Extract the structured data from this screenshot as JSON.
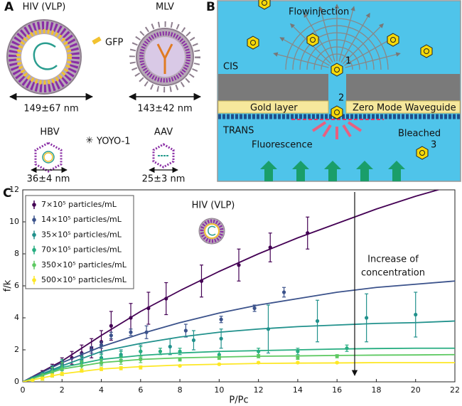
{
  "panels": {
    "A": {
      "label": "A",
      "hiv": "HIV (VLP)",
      "mlv": "MLV",
      "gfp": "GFP",
      "hiv_size": "149±67 nm",
      "mlv_size": "143±42 nm",
      "hbv": "HBV",
      "yoyo": "YOYO-1",
      "aav": "AAV",
      "hbv_size": "36±4 nm",
      "aav_size": "25±3 nm"
    },
    "B": {
      "label": "B",
      "flow": "Flowinjection",
      "cis": "CIS",
      "step1": "1",
      "step2": "2",
      "gold": "Gold layer",
      "zmw": "Zero Mode Waveguide",
      "trans": "TRANS",
      "fluorescence": "Fluorescence",
      "bleached": "Bleached",
      "step3": "3"
    },
    "C": {
      "label": "C"
    }
  },
  "chart_data": {
    "type": "scatter",
    "title": "HIV (VLP)",
    "x_label": "P/Pc",
    "y_label": "f/k",
    "annotation": [
      "Increase of",
      "concentration"
    ],
    "xlim": [
      0,
      22
    ],
    "ylim": [
      0,
      12
    ],
    "xticks": [
      0,
      2,
      4,
      6,
      8,
      10,
      12,
      14,
      16,
      18,
      20,
      22
    ],
    "yticks": [
      0,
      2,
      4,
      6,
      8,
      10,
      12
    ],
    "legend": "upper left",
    "series": [
      {
        "name": "7×10⁵ particles/mL",
        "color": "#440154",
        "x": [
          0.5,
          1,
          1.5,
          2,
          2.5,
          3,
          3.5,
          4,
          4.5,
          5.5,
          6.4,
          7.3,
          9.1,
          11,
          12.6,
          14.5
        ],
        "values": [
          0.2,
          0.5,
          0.8,
          1.2,
          1.5,
          1.8,
          2.1,
          2.5,
          3.5,
          4.0,
          4.6,
          5.2,
          6.3,
          7.3,
          8.4,
          9.3
        ],
        "errors": [
          0.1,
          0.2,
          0.3,
          0.3,
          0.4,
          0.5,
          0.6,
          0.7,
          0.9,
          0.9,
          1.0,
          1.0,
          1.0,
          1.0,
          0.9,
          1.0
        ],
        "fit": {
          "x": [
            0,
            2,
            4,
            6,
            8,
            10,
            12,
            14,
            16,
            18,
            20,
            22
          ],
          "values": [
            0,
            1.3,
            2.9,
            4.4,
            5.7,
            6.9,
            8.0,
            9.0,
            9.9,
            10.8,
            11.6,
            12.3
          ]
        }
      },
      {
        "name": "14×10⁵ particles/mL",
        "color": "#3b528b",
        "x": [
          0.5,
          1,
          1.5,
          2,
          3,
          3.5,
          4,
          4.5,
          5.5,
          6.3,
          8.3,
          10.1,
          11.8,
          13.3
        ],
        "values": [
          0.2,
          0.4,
          0.8,
          1.1,
          1.6,
          2.0,
          2.3,
          2.9,
          3.1,
          3.1,
          3.2,
          3.9,
          4.6,
          5.6
        ],
        "errors": [
          0.1,
          0.1,
          0.2,
          0.2,
          0.2,
          0.2,
          0.2,
          0.2,
          0.2,
          0.4,
          0.4,
          0.2,
          0.2,
          0.3
        ],
        "fit": {
          "x": [
            0,
            2,
            4,
            6,
            8,
            10,
            12,
            14,
            16,
            18,
            20,
            22
          ],
          "values": [
            0,
            1.2,
            2.2,
            3.0,
            3.7,
            4.3,
            4.8,
            5.2,
            5.6,
            5.9,
            6.1,
            6.3
          ]
        }
      },
      {
        "name": "35×10⁵ particles/mL",
        "color": "#21918c",
        "x": [
          0.5,
          1,
          1.5,
          2,
          3,
          4,
          5,
          6,
          7.5,
          8.7,
          10.1,
          12.5,
          15,
          17.5,
          20
        ],
        "values": [
          0.2,
          0.4,
          0.7,
          1.0,
          1.3,
          1.5,
          1.7,
          1.9,
          2.2,
          2.6,
          2.7,
          3.3,
          3.8,
          4.0,
          4.2
        ],
        "errors": [
          0.1,
          0.2,
          0.3,
          0.3,
          0.3,
          0.3,
          0.3,
          0.4,
          0.5,
          0.6,
          0.6,
          1.5,
          1.3,
          1.5,
          1.4
        ],
        "fit": {
          "x": [
            0,
            2,
            4,
            6,
            8,
            10,
            12,
            14,
            16,
            18,
            20,
            22
          ],
          "values": [
            0,
            1.0,
            1.9,
            2.4,
            2.8,
            3.1,
            3.3,
            3.45,
            3.55,
            3.65,
            3.7,
            3.8
          ]
        }
      },
      {
        "name": "70×10⁵ particles/mL",
        "color": "#27ad81",
        "x": [
          0.5,
          1,
          1.5,
          2,
          3,
          4,
          5,
          6,
          7,
          8,
          10,
          12,
          14,
          16.5
        ],
        "values": [
          0.1,
          0.3,
          0.6,
          0.9,
          1.2,
          1.4,
          1.6,
          1.9,
          1.9,
          1.9,
          1.7,
          1.9,
          1.9,
          2.1
        ],
        "errors": [
          0.1,
          0.2,
          0.3,
          0.5,
          0.4,
          0.3,
          0.3,
          0.3,
          0.2,
          0.2,
          0.2,
          0.2,
          0.2,
          0.2
        ],
        "fit": {
          "x": [
            0,
            2,
            4,
            6,
            8,
            10,
            12,
            14,
            16,
            18,
            20,
            22
          ],
          "values": [
            0,
            0.9,
            1.4,
            1.65,
            1.8,
            1.9,
            1.95,
            2.0,
            2.05,
            2.08,
            2.1,
            2.1
          ]
        }
      },
      {
        "name": "350×10⁵ particles/mL",
        "color": "#5ec962",
        "x": [
          0.5,
          1,
          1.5,
          2,
          3,
          4,
          5,
          6,
          8,
          10,
          12,
          14,
          16
        ],
        "values": [
          0.1,
          0.3,
          0.6,
          0.8,
          1.0,
          1.2,
          1.3,
          1.4,
          1.4,
          1.5,
          1.6,
          1.5,
          1.6
        ],
        "errors": [
          0.1,
          0.2,
          0.3,
          0.4,
          0.3,
          0.2,
          0.2,
          0.2,
          0.1,
          0.1,
          0.1,
          0.1,
          0.1
        ],
        "fit": {
          "x": [
            0,
            2,
            4,
            6,
            8,
            10,
            12,
            14,
            16,
            18,
            20,
            22
          ],
          "values": [
            0,
            0.8,
            1.2,
            1.4,
            1.5,
            1.55,
            1.6,
            1.62,
            1.65,
            1.67,
            1.68,
            1.7
          ]
        }
      },
      {
        "name": "500×10⁵ particles/mL",
        "color": "#fde725",
        "x": [
          0.5,
          1,
          1.5,
          2,
          3,
          4,
          5,
          6,
          8,
          10,
          12,
          14,
          16
        ],
        "values": [
          0.1,
          0.2,
          0.4,
          0.5,
          0.7,
          0.8,
          0.85,
          0.9,
          1.0,
          1.1,
          1.2,
          1.2,
          1.2
        ],
        "errors": [
          0.05,
          0.1,
          0.1,
          0.1,
          0.1,
          0.1,
          0.1,
          0.1,
          0.05,
          0.05,
          0.05,
          0.05,
          0.05
        ],
        "fit": {
          "x": [
            0,
            2,
            4,
            6,
            8,
            10,
            12,
            14,
            16,
            18,
            20,
            22
          ],
          "values": [
            0,
            0.5,
            0.8,
            0.95,
            1.05,
            1.1,
            1.15,
            1.17,
            1.18,
            1.2,
            1.2,
            1.2
          ]
        }
      }
    ]
  }
}
